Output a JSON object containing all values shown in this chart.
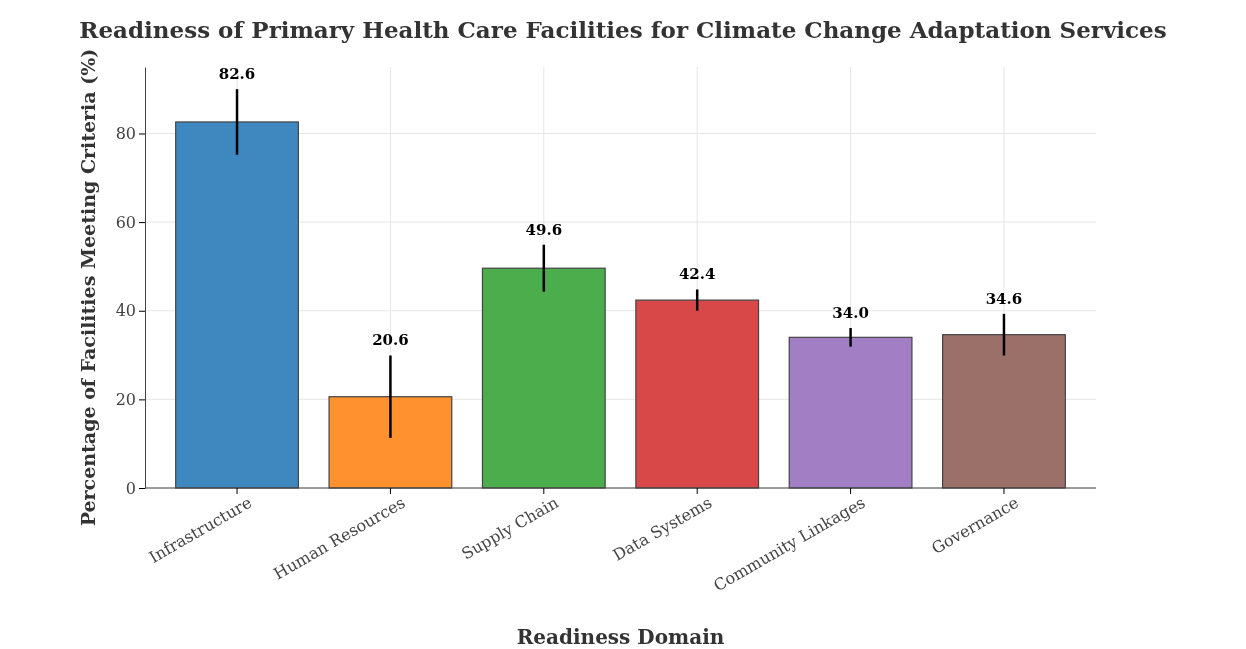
{
  "chart_data": {
    "type": "bar",
    "title": "Readiness of Primary Health Care Facilities for Climate Change Adaptation Services",
    "xlabel": "Readiness Domain",
    "ylabel": "Percentage of Facilities Meeting Criteria (%)",
    "categories": [
      "Infrastructure",
      "Human Resources",
      "Supply Chain",
      "Data Systems",
      "Community Linkages",
      "Governance"
    ],
    "values": [
      82.6,
      20.6,
      49.6,
      42.4,
      34.0,
      34.6
    ],
    "errors": [
      7.4,
      9.3,
      5.3,
      2.4,
      2.1,
      4.7
    ],
    "colors": [
      "#3f88bf",
      "#ff922f",
      "#4bad4b",
      "#d94848",
      "#a27fc4",
      "#9b7068"
    ],
    "value_labels": [
      "82.6",
      "20.6",
      "49.6",
      "42.4",
      "34.0",
      "34.6"
    ],
    "ylim": [
      0,
      95
    ],
    "yticks": [
      0,
      20,
      40,
      60,
      80
    ],
    "grid": true
  }
}
